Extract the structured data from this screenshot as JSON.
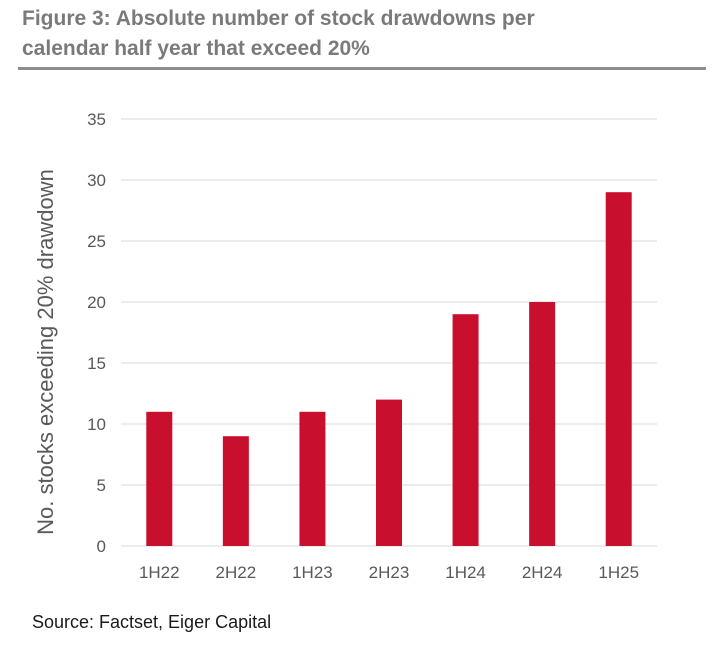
{
  "figure": {
    "title_line1": "Figure 3:  Absolute number of stock drawdowns per",
    "title_line2": "calendar half year that exceed 20%",
    "source": "Source: Factset, Eiger Capital"
  },
  "colors": {
    "bar": "#c8102e",
    "gridline": "#d9d9d9",
    "axis_text": "#595959",
    "title": "#7a7a7a"
  },
  "chart_data": {
    "type": "bar",
    "categories": [
      "1H22",
      "2H22",
      "1H23",
      "2H23",
      "1H24",
      "2H24",
      "1H25"
    ],
    "values": [
      11,
      9,
      11,
      12,
      19,
      20,
      29
    ],
    "title": "Figure 3:  Absolute number of stock drawdowns per calendar half year that exceed 20%",
    "xlabel": "",
    "ylabel": "No. stocks exceeding 20% drawdown",
    "ylim": [
      0,
      35
    ],
    "yticks": [
      0,
      5,
      10,
      15,
      20,
      25,
      30,
      35
    ],
    "grid": true,
    "legend": "none"
  }
}
